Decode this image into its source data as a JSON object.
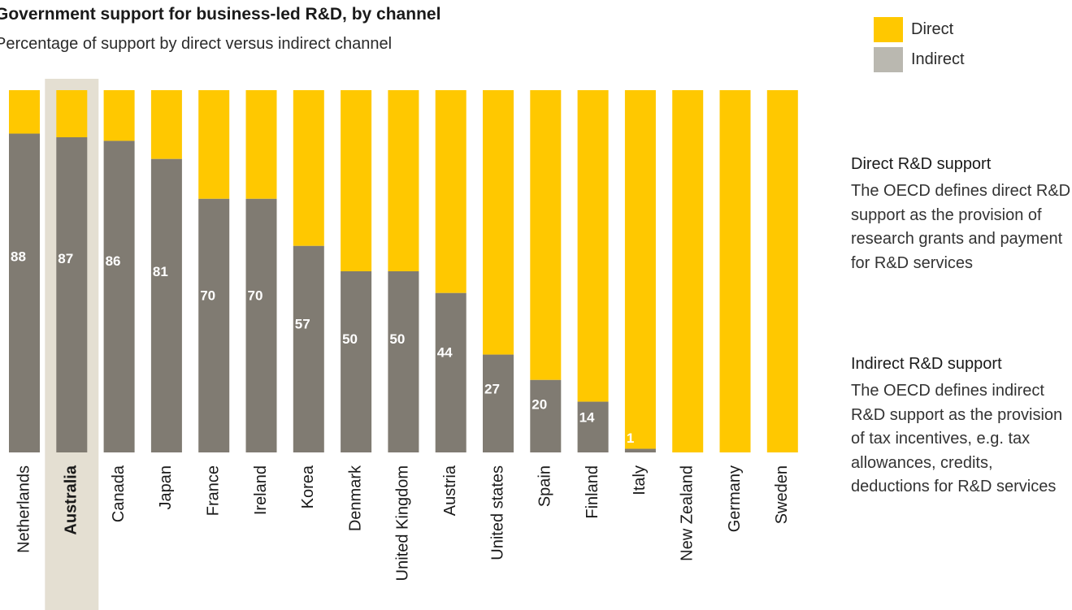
{
  "chart_data": {
    "type": "bar",
    "stacked": true,
    "title": "Government support for business-led R&D, by channel",
    "subtitle": "Percentage of support by direct versus indirect channel",
    "categories": [
      "Netherlands",
      "Australia",
      "Canada",
      "Japan",
      "France",
      "Ireland",
      "Korea",
      "Denmark",
      "United Kingdom",
      "Austria",
      "United states",
      "Spain",
      "Finland",
      "Italy",
      "New Zealand",
      "Germany",
      "Sweden"
    ],
    "highlight": "Australia",
    "series": [
      {
        "name": "Indirect",
        "color": "#807b72",
        "values": [
          88,
          87,
          86,
          81,
          70,
          70,
          57,
          50,
          50,
          44,
          27,
          20,
          14,
          1,
          0,
          0,
          0
        ]
      },
      {
        "name": "Direct",
        "color": "#ffc800",
        "values": [
          12,
          13,
          14,
          19,
          30,
          30,
          43,
          50,
          50,
          56,
          73,
          80,
          86,
          99,
          100,
          100,
          100
        ]
      }
    ],
    "data_labels": [
      "88",
      "87",
      "86",
      "81",
      "70",
      "70",
      "57",
      "50",
      "50",
      "44",
      "27",
      "20",
      "14",
      "1",
      "",
      "",
      ""
    ],
    "ylim": [
      0,
      100
    ],
    "legend_position": "top-right"
  },
  "legend": [
    {
      "label": "Direct",
      "color": "#ffc800"
    },
    {
      "label": "Indirect",
      "color": "#bab8b0"
    }
  ],
  "notes": {
    "direct": {
      "title": "Direct R&D support",
      "body": "The OECD defines direct R&D support as the provision of research grants and payment for R&D services"
    },
    "indirect": {
      "title": "Indirect R&D support",
      "body": "The OECD defines indirect R&D support as the provision of tax incentives, e.g. tax allowances, credits, deductions for R&D services"
    }
  }
}
